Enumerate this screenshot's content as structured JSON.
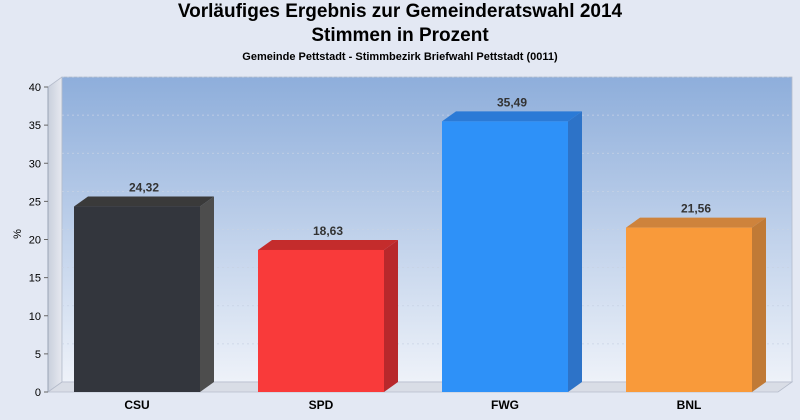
{
  "chart_data": {
    "type": "bar",
    "title_line1": "Vorläufiges Ergebnis zur Gemeinderatswahl 2014",
    "title_line2": "Stimmen in Prozent",
    "subtitle": "Gemeinde Pettstadt - Stimmbezirk Briefwahl Pettstadt (0011)",
    "ylabel": "%",
    "xlabel": "",
    "ylim": [
      0,
      40
    ],
    "yticks": [
      0,
      5,
      10,
      15,
      20,
      25,
      30,
      35,
      40
    ],
    "categories": [
      "CSU",
      "SPD",
      "FWG",
      "BNL"
    ],
    "values": [
      24.32,
      18.63,
      35.49,
      21.56
    ],
    "value_labels": [
      "24,32",
      "18,63",
      "35,49",
      "21,56"
    ],
    "colors": [
      "#33363d",
      "#f93a3a",
      "#2e91f8",
      "#f99a3a"
    ],
    "side_colors": [
      "#4d4d4d",
      "#b8282b",
      "#2d73c8",
      "#c07a36"
    ],
    "top_colors": [
      "#3a3a3a",
      "#c42c2c",
      "#2b7ad6",
      "#ce833c"
    ],
    "grid": true,
    "legend": "none"
  }
}
